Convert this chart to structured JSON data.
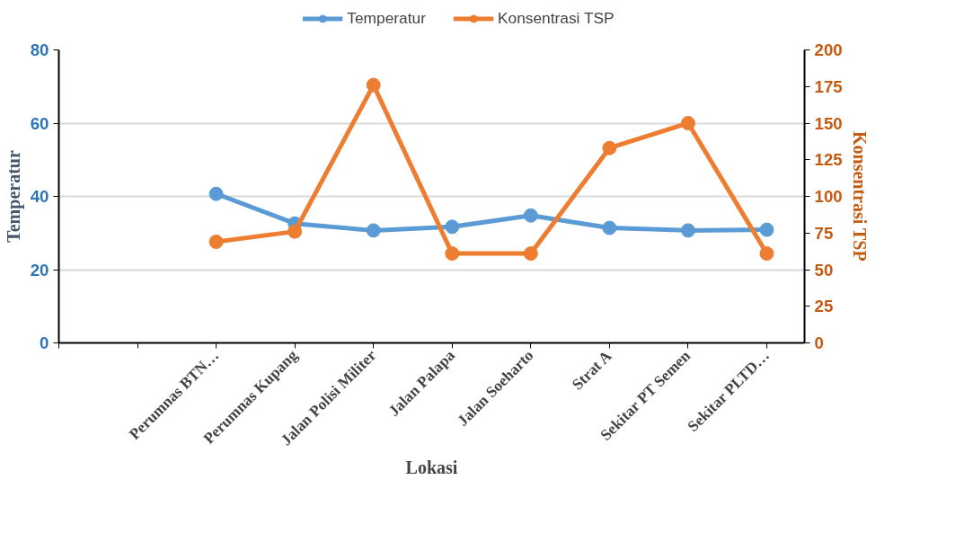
{
  "chart_data": {
    "type": "line",
    "xlabel": "Lokasi",
    "ylabel": "Temperatur",
    "y2label": "Konsentrasi TSP",
    "categories": [
      null,
      null,
      "Perumnas BTN…",
      "Perumnas Kupang",
      "Jalan Polisi Militer",
      "Jalan Palapa",
      "Jalan Soeharto",
      "Strat A",
      "Sekitar PT Semen",
      "Sekitar PLTD…"
    ],
    "series": [
      {
        "name": "Temperatur",
        "color": "#5b9bd5",
        "values": [
          null,
          null,
          40.7,
          32.6,
          30.7,
          31.7,
          34.8,
          31.4,
          30.7,
          30.9
        ]
      },
      {
        "name": "Konsentrasi TSP",
        "color": "#ed7d31",
        "axis": "y2",
        "values": [
          null,
          null,
          69,
          76,
          176,
          61,
          61,
          133,
          150,
          61
        ]
      }
    ],
    "ylim": [
      0,
      80
    ],
    "yticks": [
      0,
      20,
      40,
      60,
      80
    ],
    "y2lim": [
      0,
      200
    ],
    "y2ticks": [
      0,
      25,
      50,
      75,
      100,
      125,
      150,
      175,
      200
    ],
    "grid": "y",
    "legend": "top",
    "marker": "circle",
    "line_style": "solid"
  }
}
